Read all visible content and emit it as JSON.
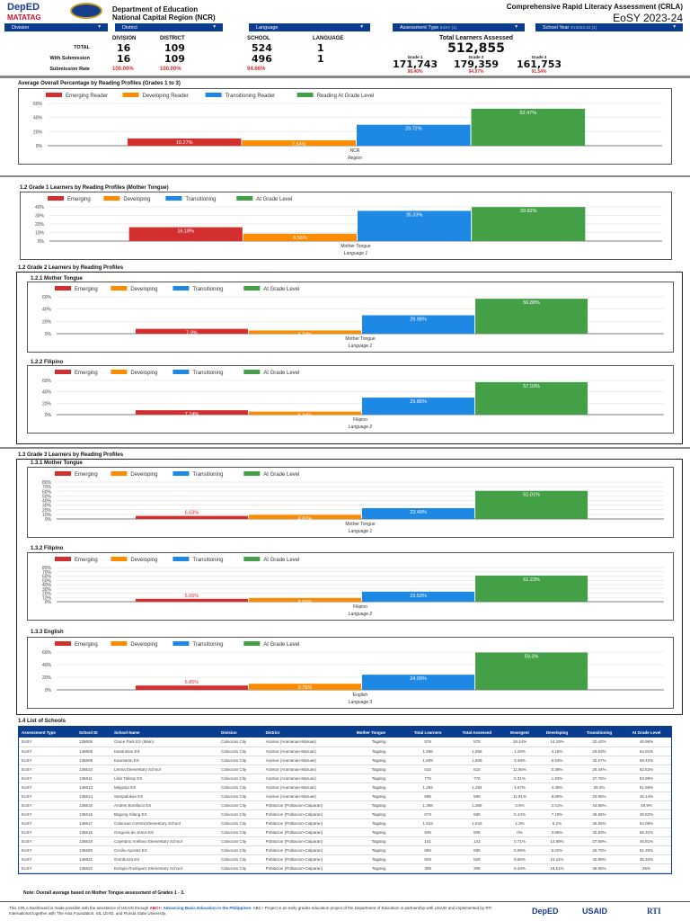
{
  "header": {
    "deped_logo": "DepED",
    "matatag": "MATATAG",
    "org1": "Department of Education",
    "org2": "National Capital Region (NCR)",
    "title": "Comprehensive Rapid Literacy Assessment (CRLA)",
    "subtitle": "EoSY 2023-24"
  },
  "filters": [
    {
      "label": "Division",
      "value": ""
    },
    {
      "label": "District",
      "value": ""
    },
    {
      "label": "Language",
      "value": ""
    },
    {
      "label": "Assessment Type",
      "value": "EoSY  (1)"
    },
    {
      "label": "School Year",
      "value": "SY2023-24     (1)"
    }
  ],
  "stats": {
    "columns": [
      "DIVISION",
      "DISTRICT",
      "SCHOOL",
      "LANGUAGE"
    ],
    "rows": [
      {
        "label": "TOTAL",
        "values": [
          "16",
          "109",
          "524",
          "1"
        ]
      },
      {
        "label": "With Submission",
        "values": [
          "16",
          "109",
          "496",
          "1"
        ]
      }
    ],
    "rate_label": "Submission Rate",
    "rates": [
      "100.00%",
      "100.00%",
      "94.66%"
    ],
    "total_label": "Total Learners Assessed",
    "total": "512,855",
    "grades": [
      {
        "label": "Grade 1",
        "value": "171,743",
        "rate": "98.40%"
      },
      {
        "label": "Grade 2",
        "value": "179,359",
        "rate": "94.97%"
      },
      {
        "label": "Grade 3",
        "value": "161,753",
        "rate": "91.54%"
      }
    ]
  },
  "colors": {
    "emerging": "#d32f2f",
    "developing": "#fb8c00",
    "transitioning": "#1e88e5",
    "grade_level": "#43a047",
    "header_blue": "#0a3d8f"
  },
  "sections": {
    "s12g2": "1.2 Grade 2 Learners by Reading Profiles",
    "s13": "1.3 Grade 3 Learners by Reading Profiles",
    "s14": "1.4 List of Schools"
  },
  "chart_data": [
    {
      "type": "bar",
      "title": "Average Overall  Percentage by Reading Profiles (Grades 1 to 3)",
      "legend": [
        "Emerging Reader",
        "Developing Reader",
        "Transitioning Reader",
        "Reading At Grade Level"
      ],
      "categories": [
        "NCR"
      ],
      "xlabel": "Region",
      "values": [
        10.27,
        7.54,
        29.72,
        52.47
      ],
      "labels": [
        "10.27%",
        "7.54%",
        "29.72%",
        "52.47%"
      ],
      "ylim": [
        0,
        60
      ],
      "yticks": [
        "0%",
        "20%",
        "40%",
        "60%"
      ],
      "legend_position": "top-left",
      "grid": true
    },
    {
      "type": "bar",
      "title": "1.2 Grade 1 Learners by Reading Profiles (Mother Tongue)",
      "legend": [
        "Emerging",
        "Developing",
        "Transitioning",
        "At Grade Level"
      ],
      "categories": [
        "Mother Tongue"
      ],
      "xlabel": "Language 1",
      "values": [
        16.18,
        8.56,
        35.33,
        39.82
      ],
      "labels": [
        "16.18%",
        "8.56%",
        "35.33%",
        "39.82%"
      ],
      "ylim": [
        0,
        40
      ],
      "yticks": [
        "0%",
        "10%",
        "20%",
        "30%",
        "40%"
      ],
      "legend_position": "top-left",
      "grid": true
    },
    {
      "type": "bar",
      "title": "1.2.1 Mother Tongue",
      "legend": [
        "Emerging",
        "Developing",
        "Transitioning",
        "At Grade Level"
      ],
      "categories": [
        "Mother Tongue"
      ],
      "xlabel": "Language 1",
      "values": [
        7.9,
        5.24,
        29.98,
        56.88
      ],
      "labels": [
        "7.9%",
        "5.24%",
        "29.98%",
        "56.88%"
      ],
      "ylim": [
        0,
        60
      ],
      "yticks": [
        "0%",
        "20%",
        "40%",
        "60%"
      ],
      "legend_position": "top-left",
      "grid": true
    },
    {
      "type": "bar",
      "title": "1.2.2 Filipino",
      "legend": [
        "Emerging",
        "Developing",
        "Transitioning",
        "At Grade Level"
      ],
      "categories": [
        "Filipino"
      ],
      "xlabel": "Language 2",
      "values": [
        7.74,
        5.34,
        29.86,
        57.03
      ],
      "labels": [
        "7.74%",
        "5.34%",
        "29.86%",
        "57.03%"
      ],
      "ylim": [
        0,
        60
      ],
      "yticks": [
        "0%",
        "20%",
        "40%",
        "60%"
      ],
      "legend_position": "top-left",
      "grid": true
    },
    {
      "type": "bar",
      "title": "1.3.1 Mother Tongue",
      "legend": [
        "Emerging",
        "Developing",
        "Transitioning",
        "At Grade Level"
      ],
      "categories": [
        "Mother Tongue"
      ],
      "xlabel": "Language 1",
      "values": [
        6.63,
        8.87,
        23.49,
        61.01
      ],
      "labels": [
        "6.63%",
        "8.87%",
        "23.49%",
        "61.01%"
      ],
      "ylim": [
        0,
        80
      ],
      "yticks": [
        "0%",
        "10%",
        "20%",
        "30%",
        "40%",
        "50%",
        "60%",
        "70%",
        "80%"
      ],
      "legend_position": "top-left",
      "grid": true
    },
    {
      "type": "bar",
      "title": "1.3.2 Filipino",
      "legend": [
        "Emerging",
        "Developing",
        "Transitioning",
        "At Grade Level"
      ],
      "categories": [
        "Filipino"
      ],
      "xlabel": "Language 2",
      "values": [
        6.66,
        8.56,
        23.53,
        61.23
      ],
      "labels": [
        "6.66%",
        "8.56%",
        "23.53%",
        "61.23%"
      ],
      "ylim": [
        0,
        80
      ],
      "yticks": [
        "0%",
        "10%",
        "20%",
        "30%",
        "40%",
        "50%",
        "60%",
        "70%",
        "80%"
      ],
      "legend_position": "top-left",
      "grid": true
    },
    {
      "type": "bar",
      "title": "1.3.3 English",
      "legend": [
        "Emerging",
        "Developing",
        "Transitioning",
        "At Grade Level"
      ],
      "categories": [
        "English"
      ],
      "xlabel": "Language 3",
      "values": [
        6.85,
        9.75,
        24.09,
        59.3
      ],
      "labels": [
        "6.85%",
        "9.75%",
        "24.09%",
        "59.3%"
      ],
      "ylim": [
        0,
        60
      ],
      "yticks": [
        "0%",
        "20%",
        "40%",
        "60%"
      ],
      "legend_position": "top-left",
      "grid": true
    }
  ],
  "table": {
    "columns": [
      "Assessment Type",
      "School ID",
      "School Name",
      "Division",
      "District",
      "Mother Tongue",
      "Total Learners",
      "Total Assessed",
      "Emergent",
      "Developing",
      "Transitioning",
      "At Grade Level"
    ],
    "rows": [
      [
        "EoSY",
        "136606",
        "Grace Park ES (Main)",
        "Caloocan City",
        "Aramar (Aramanan-Maruas)",
        "Tagalog",
        "578",
        "578",
        "18.44%",
        "14.19%",
        "20.42%",
        "46.96%"
      ],
      [
        "EoSY",
        "136608",
        "Kasarinlan ES",
        "Caloocan City",
        "Aramar (Aramanan-Maruas)",
        "Tagalog",
        "1,556",
        "1,556",
        "1.29%",
        "4.18%",
        "29.63%",
        "64.91%"
      ],
      [
        "EoSY",
        "136609",
        "Kaunlaran ES",
        "Caloocan City",
        "Aramar (Aramanan-Maruas)",
        "Tagalog",
        "1,609",
        "1,609",
        "3.48%",
        "5.53%",
        "32.57%",
        "58.42%"
      ],
      [
        "EoSY",
        "136610",
        "Lerma Elementary School",
        "Caloocan City",
        "Aramar (Aramanan-Maruas)",
        "Tagalog",
        "515",
        "515",
        "11.65%",
        "0.39%",
        "25.44%",
        "62.52%"
      ],
      [
        "EoSY",
        "136611",
        "Libis Talisay ES",
        "Caloocan City",
        "Aramar (Aramanan-Maruas)",
        "Tagalog",
        "776",
        "776",
        "6.31%",
        "1.93%",
        "37.76%",
        "53.99%"
      ],
      [
        "EoSY",
        "136613",
        "Maypajo ES",
        "Caloocan City",
        "Aramar (Aramanan-Maruas)",
        "Tagalog",
        "1,284",
        "1,284",
        "4.67%",
        "4.36%",
        "39.4%",
        "51.56%"
      ],
      [
        "EoSY",
        "136614",
        "Sampalukan ES",
        "Caloocan City",
        "Aramar (Aramanan-Maruas)",
        "Tagalog",
        "596",
        "596",
        "11.91%",
        "8.89%",
        "33.05%",
        "46.14%"
      ],
      [
        "EoSY",
        "136615",
        "Andres Bonifacio ES",
        "Caloocan City",
        "Poblacion (Poblacion-Calparan)",
        "Tagalog",
        "1,368",
        "1,368",
        "2.8%",
        "2.41%",
        "44.88%",
        "48.9%"
      ],
      [
        "EoSY",
        "136616",
        "Bagong Silang ES",
        "Caloocan City",
        "Poblacion (Poblacion-Calparan)",
        "Tagalog",
        "673",
        "668",
        "6.44%",
        "7.19%",
        "46.56%",
        "39.82%"
      ],
      [
        "EoSY",
        "136617",
        "Caloocan Central Elementary School",
        "Caloocan City",
        "Poblacion (Poblacion-Calparan)",
        "Tagalog",
        "1,543",
        "1,543",
        "1.3%",
        "8.1%",
        "36.55%",
        "54.05%"
      ],
      [
        "EoSY",
        "136618",
        "Gregoria de Jesus ES",
        "Caloocan City",
        "Poblacion (Poblacion-Calparan)",
        "Tagalog",
        "935",
        "935",
        "0%",
        "0.86%",
        "32.83%",
        "66.31%"
      ],
      [
        "EoSY",
        "136619",
        "Cayetano Arellano Elementary School",
        "Caloocan City",
        "Poblacion (Poblacion-Calparan)",
        "Tagalog",
        "141",
        "141",
        "0.71%",
        "14.89%",
        "37.59%",
        "46.81%"
      ],
      [
        "EoSY",
        "136620",
        "Cecilio Apostol ES",
        "Caloocan City",
        "Poblacion (Poblacion-Calparan)",
        "Tagalog",
        "660",
        "658",
        "6.99%",
        "5.02%",
        "26.75%",
        "61.25%"
      ],
      [
        "EoSY",
        "136621",
        "Gomburza ES",
        "Caloocan City",
        "Poblacion (Poblacion-Calparan)",
        "Tagalog",
        "829",
        "829",
        "9.65%",
        "15.11%",
        "40.89%",
        "35.34%"
      ],
      [
        "EoSY",
        "136622",
        "Eulogio Rodriguez Elementary School",
        "Caloocan City",
        "Poblacion (Poblacion-Calparan)",
        "Tagalog",
        "308",
        "308",
        "8.44%",
        "18.51%",
        "48.05%",
        "25%"
      ]
    ]
  },
  "note": "Note: Overall average based on Mother Tongue assessment of  Grades 1 - 3.",
  "footer": {
    "t1": "This CRLA Dashboard is made possible with the assistance of USAID through ",
    "abc": "ABC+",
    "colon": ": ",
    "abe": "Advancing Basic Education in the Philippines",
    "t2": ". ABC+ Project is an early grades education project of the Department of Education in partnership with USAID and implemented by RTI International together with The Asia Foundation, SIL LEAD, and Florida State University.",
    "logos": [
      "DepED",
      "USAID",
      "RTI"
    ]
  }
}
